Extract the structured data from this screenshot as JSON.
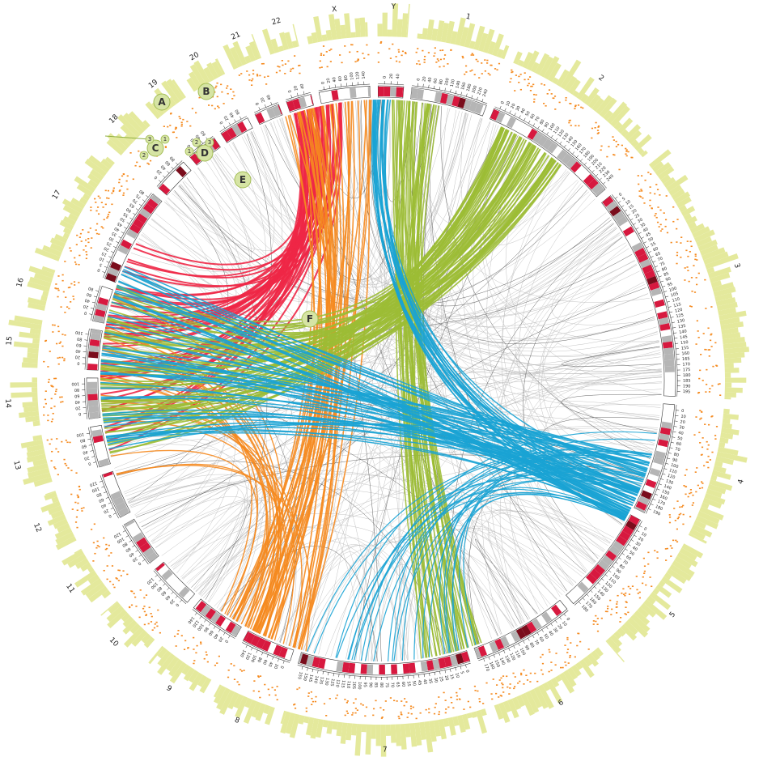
{
  "chromosomes": [
    {
      "label": "1",
      "ticks": [
        0,
        20,
        40,
        60,
        80,
        100,
        120,
        140,
        160,
        180,
        200,
        220,
        240
      ]
    },
    {
      "label": "2",
      "ticks": [
        0,
        10,
        20,
        30,
        40,
        50,
        60,
        70,
        80,
        90,
        100,
        110,
        120,
        130,
        140,
        150,
        160,
        170,
        180,
        190,
        200,
        210,
        220,
        230,
        240
      ]
    },
    {
      "label": "3",
      "ticks": [
        0,
        5,
        10,
        15,
        20,
        25,
        30,
        35,
        40,
        45,
        50,
        55,
        60,
        65,
        70,
        75,
        80,
        85,
        90,
        95,
        100,
        105,
        110,
        115,
        120,
        125,
        130,
        135,
        140,
        145,
        150,
        155,
        160,
        165,
        170,
        175,
        180,
        185,
        190,
        195
      ]
    },
    {
      "label": "4",
      "ticks": [
        0,
        10,
        20,
        30,
        40,
        50,
        60,
        70,
        80,
        90,
        100,
        110,
        120,
        130,
        140,
        150,
        160,
        170,
        180,
        190
      ]
    },
    {
      "label": "5",
      "ticks": [
        0,
        10,
        20,
        30,
        40,
        50,
        60,
        70,
        80,
        90,
        100,
        110,
        120,
        130,
        140,
        150,
        160,
        170,
        180
      ]
    },
    {
      "label": "6",
      "ticks": [
        0,
        10,
        20,
        30,
        40,
        50,
        60,
        70,
        80,
        90,
        100,
        110,
        120,
        130,
        140,
        150,
        160,
        170
      ]
    },
    {
      "label": "7",
      "ticks": [
        0,
        5,
        10,
        15,
        20,
        25,
        30,
        35,
        40,
        45,
        50,
        55,
        60,
        65,
        70,
        75,
        80,
        85,
        90,
        95,
        100,
        105,
        110,
        115,
        120,
        125,
        130,
        135,
        140,
        145,
        150,
        155
      ]
    },
    {
      "label": "8",
      "ticks": [
        0,
        20,
        40,
        60,
        80,
        100,
        120,
        140
      ]
    },
    {
      "label": "9",
      "ticks": [
        0,
        20,
        40,
        60,
        80,
        100,
        120,
        140
      ]
    },
    {
      "label": "10",
      "ticks": [
        0,
        20,
        40,
        60,
        80,
        100,
        120
      ]
    },
    {
      "label": "11",
      "ticks": [
        0,
        20,
        40,
        60,
        80,
        100,
        120
      ]
    },
    {
      "label": "12",
      "ticks": [
        0,
        20,
        40,
        60,
        80,
        100,
        120
      ]
    },
    {
      "label": "13",
      "ticks": [
        0,
        20,
        40,
        60,
        80,
        100
      ]
    },
    {
      "label": "14",
      "ticks": [
        0,
        20,
        40,
        60,
        80,
        100
      ]
    },
    {
      "label": "15",
      "ticks": [
        0,
        20,
        40,
        60,
        80,
        100
      ]
    },
    {
      "label": "16",
      "ticks": [
        0,
        20,
        40,
        60,
        80
      ]
    },
    {
      "label": "17",
      "ticks": [
        0,
        5,
        10,
        15,
        20,
        25,
        30,
        35,
        40,
        45,
        50,
        55,
        60,
        65,
        70,
        75,
        80
      ]
    },
    {
      "label": "18",
      "ticks": [
        0,
        20,
        40,
        60,
        80
      ]
    },
    {
      "label": "19",
      "ticks": [
        0,
        20,
        40,
        60
      ]
    },
    {
      "label": "20",
      "ticks": [
        0,
        20,
        40,
        60
      ]
    },
    {
      "label": "21",
      "ticks": [
        0,
        20,
        40
      ]
    },
    {
      "label": "22",
      "ticks": [
        0,
        20,
        40
      ]
    },
    {
      "label": "X",
      "ticks": [
        0,
        20,
        40,
        60,
        80,
        100,
        120,
        140
      ]
    },
    {
      "label": "Y",
      "ticks": [
        0,
        20,
        40
      ]
    }
  ],
  "callouts": [
    {
      "label": "A"
    },
    {
      "label": "B"
    },
    {
      "label": "C"
    },
    {
      "label": "D"
    },
    {
      "label": "E"
    },
    {
      "label": "F"
    }
  ],
  "c_markers": [
    "3",
    "2",
    "1"
  ],
  "d_markers": [
    "1",
    "2",
    "3"
  ]
}
